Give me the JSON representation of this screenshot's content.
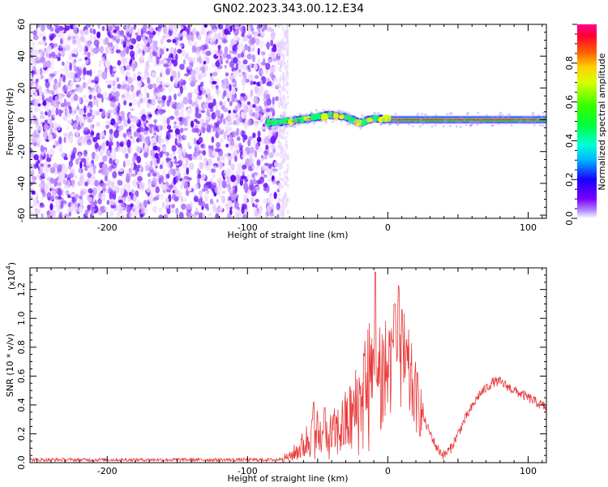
{
  "figure": {
    "title": "GN02.2023.343.00.12.E34"
  },
  "chart_data": [
    {
      "type": "heatmap",
      "title": "GN02.2023.343.00.12.E34",
      "xlabel": "Height of straight line (km)",
      "ylabel": "Frequency (Hz)",
      "xlim": [
        -255,
        113
      ],
      "ylim": [
        -62,
        60
      ],
      "xticks": [
        -200,
        -100,
        0,
        100
      ],
      "xtick_labels": [
        "-200",
        "-100",
        "0",
        "100"
      ],
      "yticks": [
        -60,
        -40,
        -20,
        0,
        20,
        40,
        60
      ],
      "ytick_labels": [
        "-60",
        "-40",
        "-20",
        "0",
        "20",
        "40",
        "60"
      ],
      "noise_region_km": [
        -255,
        -78
      ],
      "signal_band": {
        "start_km": -85,
        "end_km": 113,
        "center_freq_hz": [
          {
            "x": -85,
            "y": -2
          },
          {
            "x": -70,
            "y": -1
          },
          {
            "x": -55,
            "y": 1
          },
          {
            "x": -42,
            "y": 3
          },
          {
            "x": -30,
            "y": 2
          },
          {
            "x": -20,
            "y": -2
          },
          {
            "x": -10,
            "y": 1
          },
          {
            "x": 0,
            "y": 0
          },
          {
            "x": 113,
            "y": 0
          }
        ]
      },
      "colorbar": {
        "label": "Normalized spectral amplitude",
        "range": [
          0,
          1
        ],
        "ticks": [
          0.0,
          0.2,
          0.4,
          0.6,
          0.8
        ],
        "tick_labels": [
          "0.0",
          "0.2",
          "0.4",
          "0.6",
          "0.8"
        ]
      },
      "grid": false
    },
    {
      "type": "line",
      "xlabel": "Height of straight line (km)",
      "ylabel": "SNR (10 * v/v)",
      "yscale_note": "(x10",
      "yscale_exp": "4",
      "xlim": [
        -255,
        113
      ],
      "ylim": [
        0,
        1.35
      ],
      "xticks": [
        -200,
        -100,
        0,
        100
      ],
      "xtick_labels": [
        "-200",
        "-100",
        "0",
        "100"
      ],
      "yticks": [
        0.0,
        0.2,
        0.4,
        0.6,
        0.8,
        1.0,
        1.2
      ],
      "ytick_labels": [
        "0.0",
        "0.2",
        "0.4",
        "0.6",
        "0.8",
        "1.0",
        "1.2"
      ],
      "line_color": "#e83a3a",
      "envelope": [
        {
          "x": -255,
          "y": 0.02
        },
        {
          "x": -150,
          "y": 0.02
        },
        {
          "x": -80,
          "y": 0.02
        },
        {
          "x": -70,
          "y": 0.04
        },
        {
          "x": -60,
          "y": 0.12
        },
        {
          "x": -52,
          "y": 0.22
        },
        {
          "x": -45,
          "y": 0.16
        },
        {
          "x": -35,
          "y": 0.22
        },
        {
          "x": -25,
          "y": 0.32
        },
        {
          "x": -18,
          "y": 0.45
        },
        {
          "x": -12,
          "y": 0.55
        },
        {
          "x": -8,
          "y": 0.62
        },
        {
          "x": -3,
          "y": 0.6
        },
        {
          "x": 3,
          "y": 0.72
        },
        {
          "x": 8,
          "y": 0.8
        },
        {
          "x": 13,
          "y": 0.65
        },
        {
          "x": 20,
          "y": 0.45
        },
        {
          "x": 28,
          "y": 0.25
        },
        {
          "x": 35,
          "y": 0.1
        },
        {
          "x": 40,
          "y": 0.05
        },
        {
          "x": 45,
          "y": 0.1
        },
        {
          "x": 55,
          "y": 0.3
        },
        {
          "x": 65,
          "y": 0.47
        },
        {
          "x": 75,
          "y": 0.56
        },
        {
          "x": 80,
          "y": 0.56
        },
        {
          "x": 90,
          "y": 0.5
        },
        {
          "x": 100,
          "y": 0.45
        },
        {
          "x": 113,
          "y": 0.38
        }
      ],
      "peaks": [
        {
          "x": -53,
          "y": 0.42
        },
        {
          "x": -45,
          "y": 0.38
        },
        {
          "x": -17,
          "y": 0.74
        },
        {
          "x": -9,
          "y": 1.32
        },
        {
          "x": 5,
          "y": 1.1
        },
        {
          "x": 10,
          "y": 1.06
        }
      ],
      "grid": false
    }
  ]
}
